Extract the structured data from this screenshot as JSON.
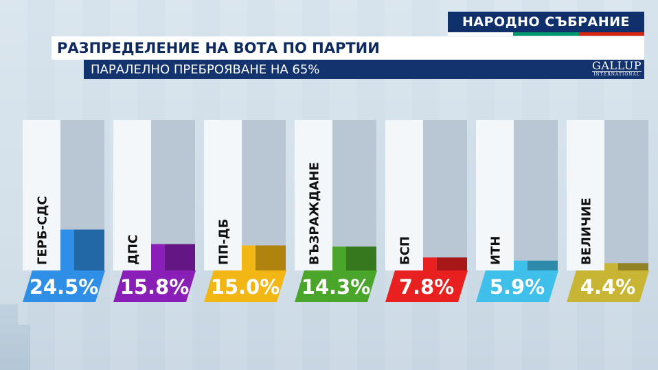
{
  "header": {
    "banner": "НАРОДНО СЪБРАНИЕ",
    "title": "РАЗПРЕДЕЛЕНИЕ НА ВОТА ПО ПАРТИИ",
    "subtitle": "ПАРАЛЕЛНО ПРЕБРОЯВАНЕ НА 65%",
    "logo_main": "GALLUP",
    "logo_sub": "INTERNATIONAL",
    "flag_colors": [
      "#ffffff",
      "#00966e",
      "#d62612"
    ]
  },
  "chart_data": {
    "type": "bar",
    "categories": [
      "ГЕРБ-СДС",
      "ДПС",
      "ПП-ДБ",
      "ВЪЗРАЖДАНЕ",
      "БСП",
      "ИТН",
      "ВЕЛИЧИЕ"
    ],
    "values": [
      24.5,
      15.8,
      15.0,
      14.3,
      7.8,
      5.9,
      4.4
    ],
    "value_labels": [
      "24.5%",
      "15.8%",
      "15.0%",
      "14.3%",
      "7.8%",
      "5.9%",
      "4.4%"
    ],
    "colors": [
      "#2f8fe6",
      "#8a1fb8",
      "#f2b714",
      "#4aa62a",
      "#e82020",
      "#3fc0ea",
      "#c8b533"
    ],
    "ylim": [
      0,
      100
    ],
    "grid": false,
    "legend": "none"
  }
}
